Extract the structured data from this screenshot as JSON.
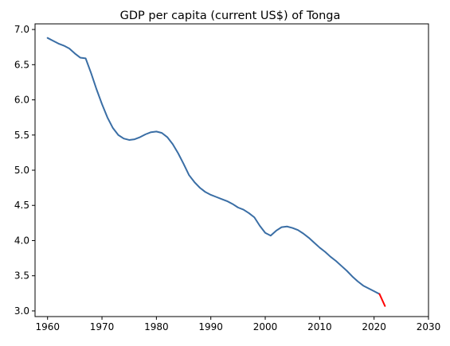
{
  "chart_data": {
    "type": "line",
    "title": "GDP per capita (current US$) of Tonga",
    "xlabel": "",
    "ylabel": "",
    "xlim": [
      1957.7,
      2030
    ],
    "ylim": [
      2.92,
      7.08
    ],
    "xticks": [
      1960,
      1970,
      1980,
      1990,
      2000,
      2010,
      2020,
      2030
    ],
    "yticks": [
      3.0,
      3.5,
      4.0,
      4.5,
      5.0,
      5.5,
      6.0,
      6.5,
      7.0
    ],
    "xtick_labels": [
      "1960",
      "1970",
      "1980",
      "1990",
      "2000",
      "2010",
      "2020",
      "2030"
    ],
    "ytick_labels": [
      "3.0",
      "3.5",
      "4.0",
      "4.5",
      "5.0",
      "5.5",
      "6.0",
      "6.5",
      "7.0"
    ],
    "grid": false,
    "series": [
      {
        "color": "#3a6ea5",
        "x": [
          1960,
          1961,
          1962,
          1963,
          1964,
          1965,
          1966,
          1967,
          1968,
          1969,
          1970,
          1971,
          1972,
          1973,
          1974,
          1975,
          1976,
          1977,
          1978,
          1979,
          1980,
          1981,
          1982,
          1983,
          1984,
          1985,
          1986,
          1987,
          1988,
          1989,
          1990,
          1991,
          1992,
          1993,
          1994,
          1995,
          1996,
          1997,
          1998,
          1999,
          2000,
          2001,
          2002,
          2003,
          2004,
          2005,
          2006,
          2007,
          2008,
          2009,
          2010,
          2011,
          2012,
          2013,
          2014,
          2015,
          2016,
          2017,
          2018,
          2019,
          2020,
          2021
        ],
        "y": [
          6.88,
          6.84,
          6.8,
          6.77,
          6.73,
          6.66,
          6.6,
          6.59,
          6.38,
          6.15,
          5.94,
          5.75,
          5.6,
          5.5,
          5.45,
          5.43,
          5.44,
          5.47,
          5.51,
          5.54,
          5.55,
          5.53,
          5.47,
          5.37,
          5.24,
          5.09,
          4.93,
          4.83,
          4.75,
          4.69,
          4.65,
          4.62,
          4.59,
          4.56,
          4.52,
          4.47,
          4.44,
          4.39,
          4.33,
          4.21,
          4.11,
          4.07,
          4.14,
          4.19,
          4.2,
          4.18,
          4.15,
          4.1,
          4.04,
          3.97,
          3.9,
          3.84,
          3.77,
          3.71,
          3.64,
          3.57,
          3.49,
          3.42,
          3.36,
          3.32,
          3.28,
          3.24
        ]
      },
      {
        "color": "#ff0000",
        "x": [
          2021,
          2022
        ],
        "y": [
          3.24,
          3.07
        ]
      }
    ]
  }
}
